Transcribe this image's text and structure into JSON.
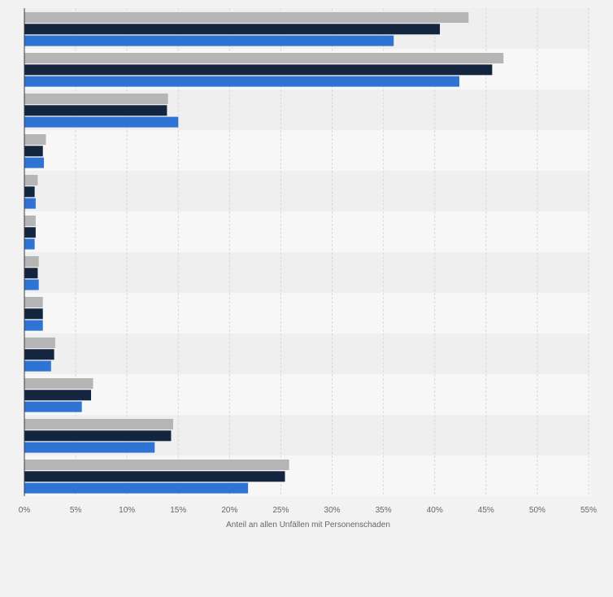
{
  "chart_data": {
    "type": "bar",
    "orientation": "horizontal",
    "title": "",
    "xlabel": "Anteil an allen Unfällen mit Personenschaden",
    "ylabel": "",
    "xlim": [
      0,
      55
    ],
    "x_ticks": [
      0,
      5,
      10,
      15,
      20,
      25,
      30,
      35,
      40,
      45,
      50,
      55
    ],
    "x_tick_format": "{v}%",
    "grid": true,
    "legend": "none",
    "categories": [
      "",
      "",
      "",
      "",
      "",
      "",
      "",
      "",
      "",
      "",
      "",
      ""
    ],
    "series": [
      {
        "color": "#b5b5b5",
        "values": [
          43.3,
          46.7,
          14.0,
          2.1,
          1.3,
          1.1,
          1.4,
          1.8,
          3.0,
          6.7,
          14.5,
          25.8
        ]
      },
      {
        "color": "#14263f",
        "values": [
          40.5,
          45.6,
          13.9,
          1.8,
          1.0,
          1.1,
          1.3,
          1.8,
          2.9,
          6.5,
          14.3,
          25.4
        ]
      },
      {
        "color": "#2f74d4",
        "values": [
          36.0,
          42.4,
          15.0,
          1.9,
          1.1,
          1.0,
          1.4,
          1.8,
          2.6,
          5.6,
          12.7,
          21.8
        ]
      }
    ]
  }
}
